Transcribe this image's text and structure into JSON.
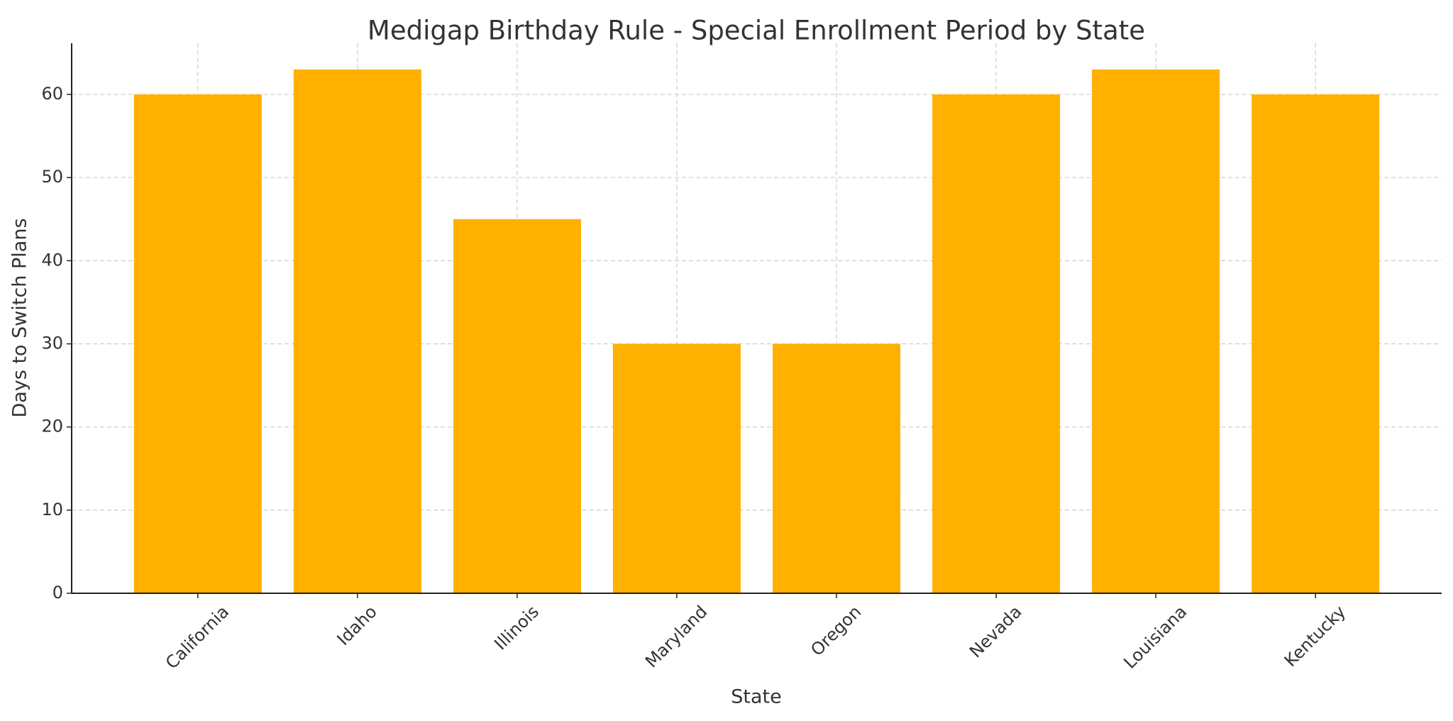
{
  "chart_data": {
    "type": "bar",
    "title": "Medigap Birthday Rule - Special Enrollment Period by State",
    "x_label": "State",
    "y_label": "Days to Switch Plans",
    "categories": [
      "California",
      "Idaho",
      "Illinois",
      "Maryland",
      "Oregon",
      "Nevada",
      "Louisiana",
      "Kentucky"
    ],
    "values": [
      60,
      63,
      45,
      30,
      30,
      60,
      63,
      60
    ],
    "color": "#ffb000",
    "ylim": [
      0,
      66.15
    ],
    "yticks": [
      0,
      10,
      20,
      30,
      40,
      50,
      60
    ],
    "grid": true
  }
}
